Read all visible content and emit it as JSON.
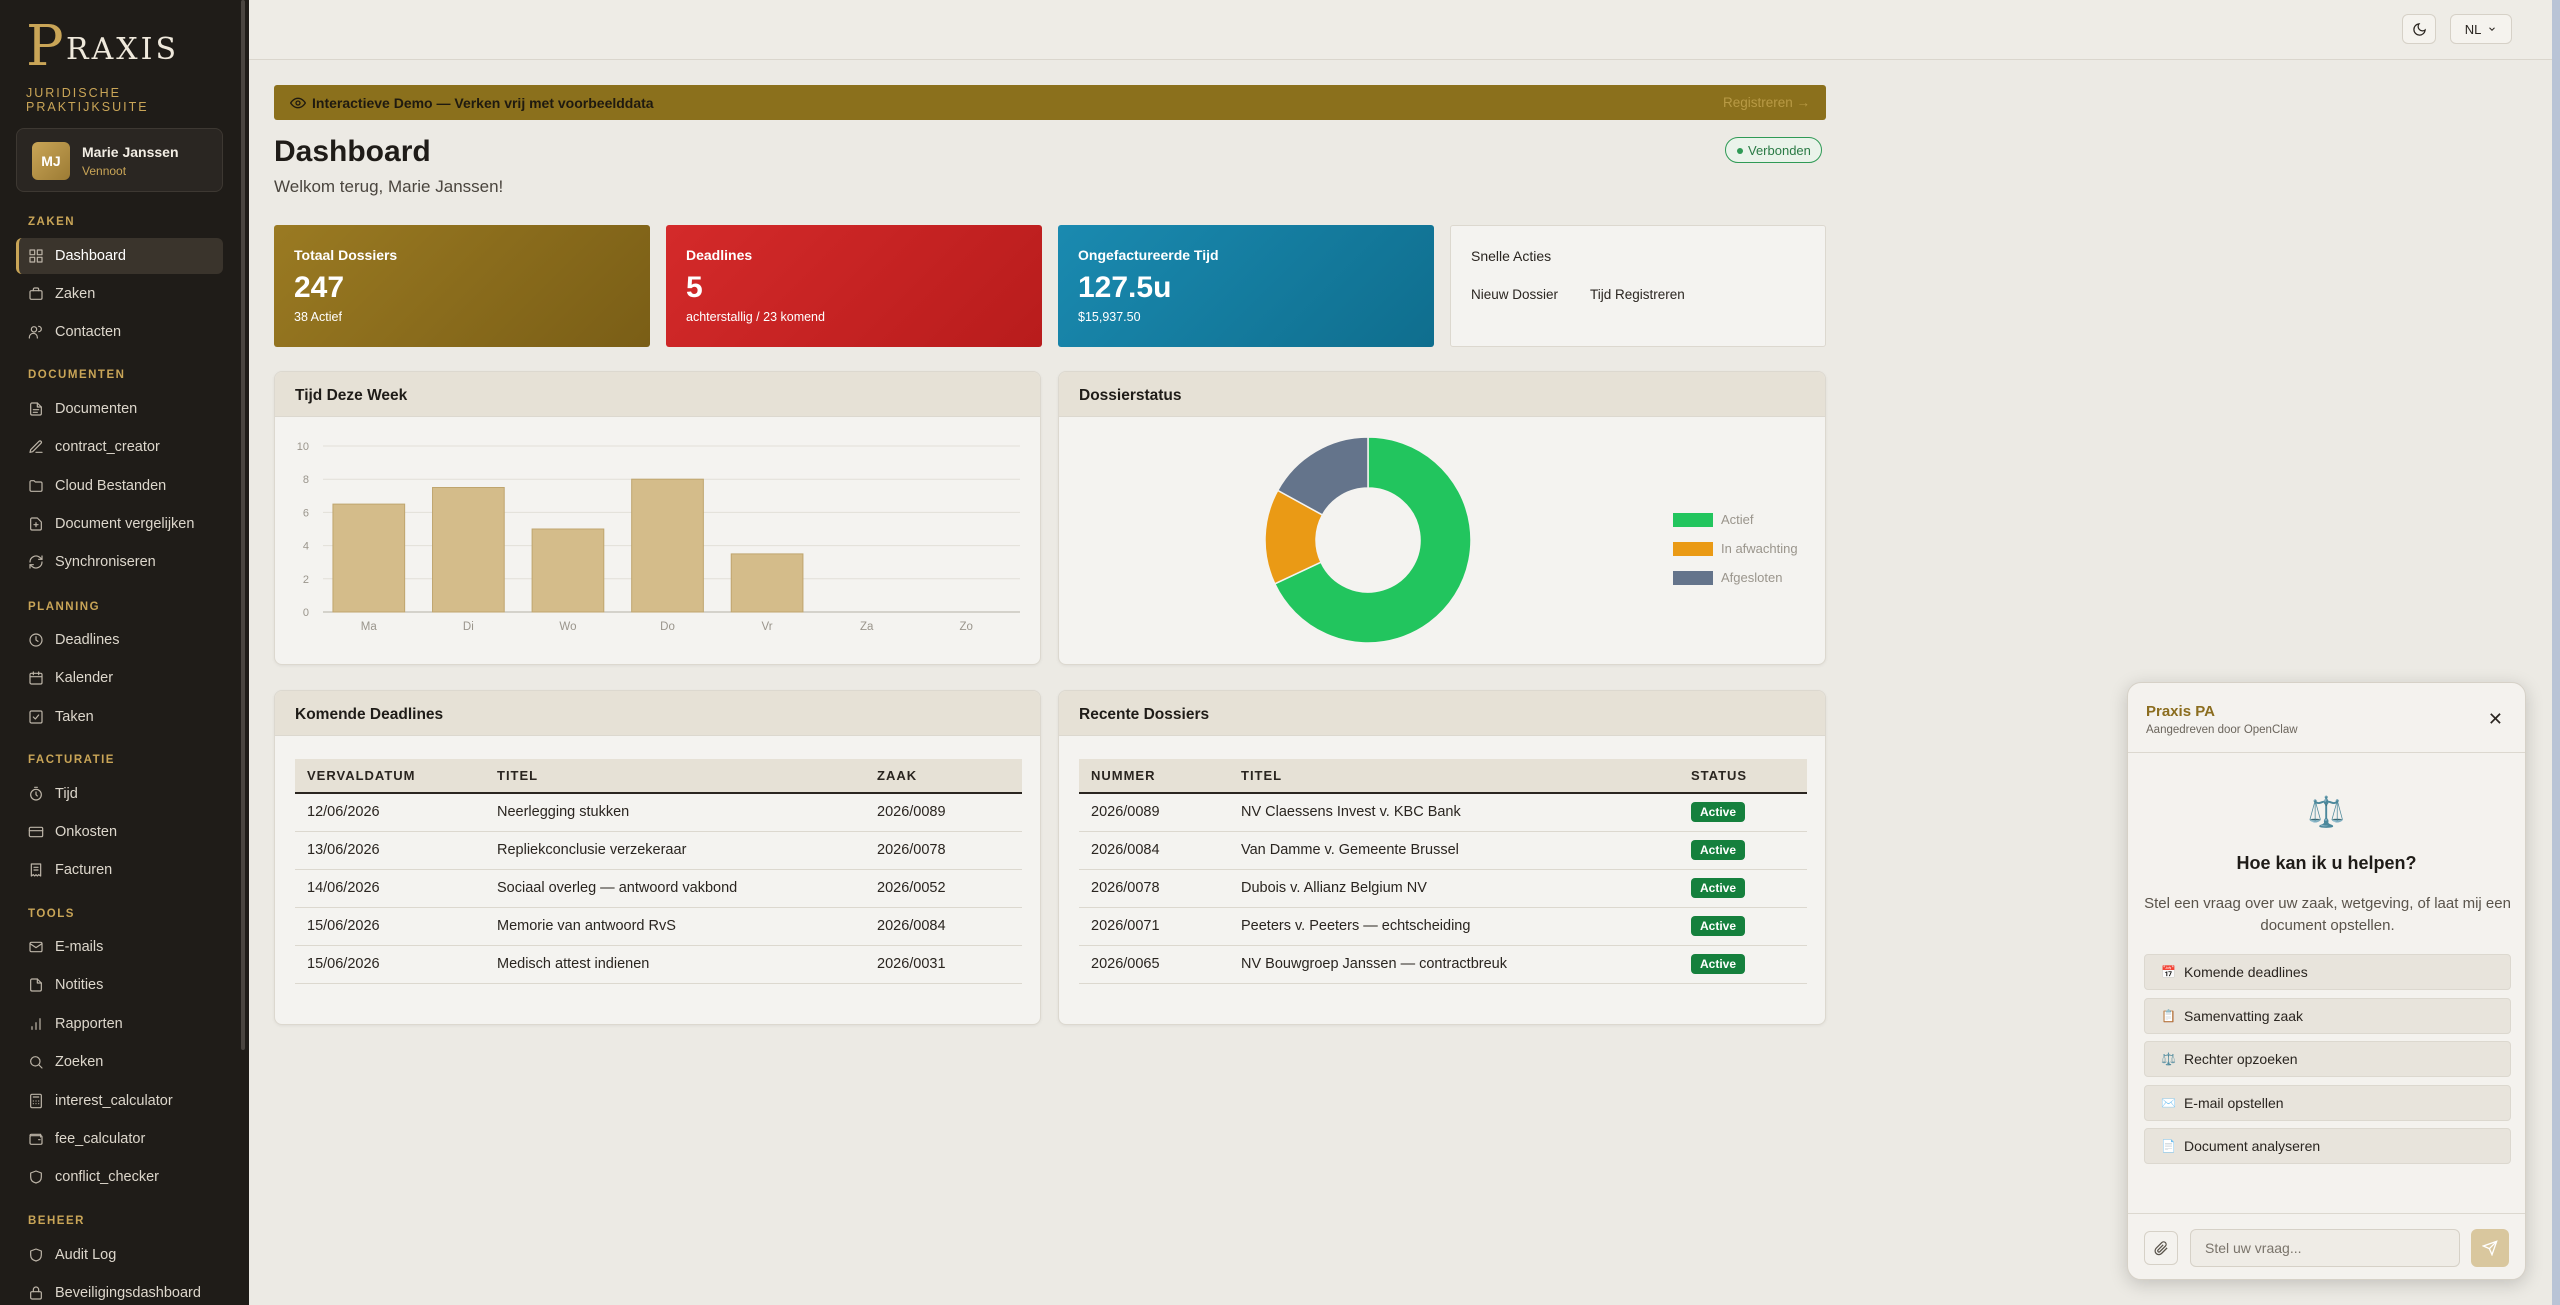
{
  "brand": {
    "logo_letter": "P",
    "logo_text": "RAXIS",
    "subtitle": "JURIDISCHE PRAKTIJKSUITE"
  },
  "user": {
    "initials": "MJ",
    "name": "Marie Janssen",
    "role": "Vennoot"
  },
  "sidebar": {
    "sections": [
      {
        "title": "ZAKEN",
        "items": [
          {
            "label": "Dashboard",
            "icon": "grid-icon",
            "active": true
          },
          {
            "label": "Zaken",
            "icon": "briefcase-icon"
          },
          {
            "label": "Contacten",
            "icon": "users-icon"
          }
        ]
      },
      {
        "title": "DOCUMENTEN",
        "items": [
          {
            "label": "Documenten",
            "icon": "file-icon"
          },
          {
            "label": "contract_creator",
            "icon": "edit-icon"
          },
          {
            "label": "Cloud Bestanden",
            "icon": "folder-icon"
          },
          {
            "label": "Document vergelijken",
            "icon": "file-diff-icon"
          },
          {
            "label": "Synchroniseren",
            "icon": "refresh-icon"
          }
        ]
      },
      {
        "title": "PLANNING",
        "items": [
          {
            "label": "Deadlines",
            "icon": "clock-icon"
          },
          {
            "label": "Kalender",
            "icon": "calendar-icon"
          },
          {
            "label": "Taken",
            "icon": "checkbox-icon"
          }
        ]
      },
      {
        "title": "FACTURATIE",
        "items": [
          {
            "label": "Tijd",
            "icon": "timer-icon"
          },
          {
            "label": "Onkosten",
            "icon": "credit-card-icon"
          },
          {
            "label": "Facturen",
            "icon": "receipt-icon"
          }
        ]
      },
      {
        "title": "TOOLS",
        "items": [
          {
            "label": "E-mails",
            "icon": "mail-icon"
          },
          {
            "label": "Notities",
            "icon": "note-icon"
          },
          {
            "label": "Rapporten",
            "icon": "bar-chart-icon"
          },
          {
            "label": "Zoeken",
            "icon": "search-icon"
          },
          {
            "label": "interest_calculator",
            "icon": "calculator-icon"
          },
          {
            "label": "fee_calculator",
            "icon": "wallet-icon"
          },
          {
            "label": "conflict_checker",
            "icon": "shield-icon"
          }
        ]
      },
      {
        "title": "BEHEER",
        "items": [
          {
            "label": "Audit Log",
            "icon": "shield-icon"
          },
          {
            "label": "Beveiligingsdashboard",
            "icon": "lock-icon"
          }
        ]
      }
    ]
  },
  "topbar": {
    "lang": "NL"
  },
  "banner": {
    "text": "Interactieve Demo — Verken vrij met voorbeelddata",
    "action": "Registreren →"
  },
  "page": {
    "title": "Dashboard",
    "welcome": "Welkom terug, Marie Janssen!",
    "status": "Verbonden"
  },
  "stats": [
    {
      "label": "Totaal Dossiers",
      "value": "247",
      "sub": "38 Actief"
    },
    {
      "label": "Deadlines",
      "value": "5",
      "sub": "achterstallig / 23 komend"
    },
    {
      "label": "Ongefactureerde Tijd",
      "value": "127.5u",
      "sub": "$15,937.50"
    }
  ],
  "quick_actions": {
    "title": "Snelle Acties",
    "new_case": "Nieuw Dossier",
    "log_time": "Tijd Registreren"
  },
  "panels": {
    "time_title": "Tijd Deze Week",
    "status_title": "Dossierstatus",
    "deadlines_title": "Komende Deadlines",
    "recent_title": "Recente Dossiers"
  },
  "chart_data": [
    {
      "type": "bar",
      "title": "Tijd Deze Week",
      "categories": [
        "Ma",
        "Di",
        "Wo",
        "Do",
        "Vr",
        "Za",
        "Zo"
      ],
      "values": [
        6.5,
        7.5,
        5,
        8,
        3.5,
        0,
        0
      ],
      "ylim": [
        0,
        10
      ],
      "yticks": [
        0,
        2,
        4,
        6,
        8,
        10
      ],
      "color": "#d4bc8a",
      "grid": true
    },
    {
      "type": "pie",
      "title": "Dossierstatus",
      "categories": [
        "Actief",
        "In afwachting",
        "Afgesloten"
      ],
      "values": [
        68,
        15,
        17
      ],
      "colors": [
        "#22c55e",
        "#ea9a15",
        "#64748b"
      ],
      "legend": "right"
    }
  ],
  "deadlines": {
    "headers": [
      "VERVALDATUM",
      "TITEL",
      "ZAAK"
    ],
    "rows": [
      [
        "12/06/2026",
        "Neerlegging stukken",
        "2026/0089"
      ],
      [
        "13/06/2026",
        "Repliekconclusie verzekeraar",
        "2026/0078"
      ],
      [
        "14/06/2026",
        "Sociaal overleg — antwoord vakbond",
        "2026/0052"
      ],
      [
        "15/06/2026",
        "Memorie van antwoord RvS",
        "2026/0084"
      ],
      [
        "15/06/2026",
        "Medisch attest indienen",
        "2026/0031"
      ]
    ]
  },
  "recent": {
    "headers": [
      "NUMMER",
      "TITEL",
      "STATUS"
    ],
    "rows": [
      [
        "2026/0089",
        "NV Claessens Invest v. KBC Bank",
        "Active"
      ],
      [
        "2026/0084",
        "Van Damme v. Gemeente Brussel",
        "Active"
      ],
      [
        "2026/0078",
        "Dubois v. Allianz Belgium NV",
        "Active"
      ],
      [
        "2026/0071",
        "Peeters v. Peeters — echtscheiding",
        "Active"
      ],
      [
        "2026/0065",
        "NV Bouwgroep Janssen — contractbreuk",
        "Active"
      ]
    ]
  },
  "chat": {
    "title": "Praxis PA",
    "subtitle": "Aangedreven door OpenClaw",
    "icon": "⚖️",
    "heading": "Hoe kan ik u helpen?",
    "intro": "Stel een vraag over uw zaak, wetgeving, of laat mij een document opstellen.",
    "suggestions": [
      {
        "icon": "📅",
        "label": "Komende deadlines"
      },
      {
        "icon": "📋",
        "label": "Samenvatting zaak"
      },
      {
        "icon": "⚖️",
        "label": "Rechter opzoeken"
      },
      {
        "icon": "✉️",
        "label": "E-mail opstellen"
      },
      {
        "icon": "📄",
        "label": "Document analyseren"
      }
    ],
    "placeholder": "Stel uw vraag..."
  }
}
